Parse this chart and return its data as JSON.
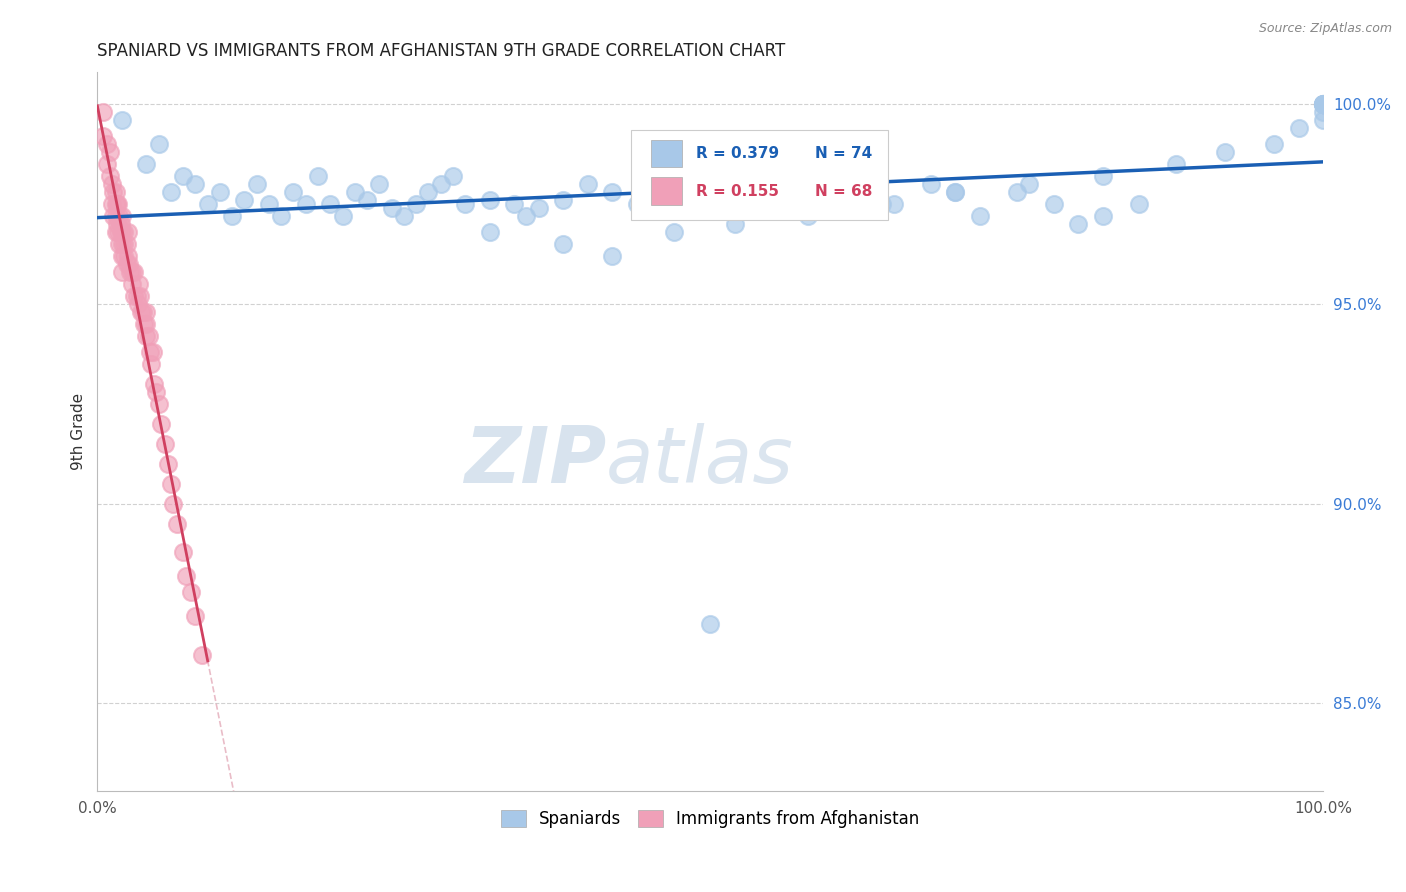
{
  "title": "SPANIARD VS IMMIGRANTS FROM AFGHANISTAN 9TH GRADE CORRELATION CHART",
  "source_text": "Source: ZipAtlas.com",
  "ylabel": "9th Grade",
  "xlim": [
    0.0,
    1.0
  ],
  "ylim": [
    0.828,
    1.008
  ],
  "y_ticks": [
    0.85,
    0.9,
    0.95,
    1.0
  ],
  "y_tick_labels": [
    "85.0%",
    "90.0%",
    "95.0%",
    "100.0%"
  ],
  "blue_color": "#a8c8e8",
  "pink_color": "#f0a0b8",
  "blue_line_color": "#1a5fb4",
  "pink_line_color": "#d04060",
  "pink_dash_color": "#e0a0b0",
  "legend_label_blue": "Spaniards",
  "legend_label_pink": "Immigrants from Afghanistan",
  "watermark_zip": "ZIP",
  "watermark_atlas": "atlas",
  "blue_scatter_x": [
    0.02,
    0.04,
    0.05,
    0.06,
    0.07,
    0.08,
    0.09,
    0.1,
    0.11,
    0.12,
    0.13,
    0.14,
    0.15,
    0.16,
    0.17,
    0.18,
    0.19,
    0.2,
    0.21,
    0.22,
    0.23,
    0.24,
    0.25,
    0.26,
    0.27,
    0.28,
    0.29,
    0.3,
    0.32,
    0.34,
    0.35,
    0.36,
    0.38,
    0.4,
    0.42,
    0.44,
    0.47,
    0.5,
    0.52,
    0.54,
    0.57,
    0.6,
    0.63,
    0.65,
    0.68,
    0.7,
    0.72,
    0.75,
    0.78,
    0.8,
    0.82,
    0.85,
    0.32,
    0.38,
    0.42,
    0.47,
    0.52,
    0.58,
    0.64,
    0.7,
    0.76,
    0.82,
    0.88,
    0.92,
    0.96,
    0.98,
    1.0,
    1.0,
    1.0,
    1.0,
    1.0,
    1.0,
    1.0,
    1.0
  ],
  "blue_scatter_y": [
    0.996,
    0.985,
    0.99,
    0.978,
    0.982,
    0.98,
    0.975,
    0.978,
    0.972,
    0.976,
    0.98,
    0.975,
    0.972,
    0.978,
    0.975,
    0.982,
    0.975,
    0.972,
    0.978,
    0.976,
    0.98,
    0.974,
    0.972,
    0.975,
    0.978,
    0.98,
    0.982,
    0.975,
    0.976,
    0.975,
    0.972,
    0.974,
    0.976,
    0.98,
    0.978,
    0.975,
    0.978,
    0.87,
    0.98,
    0.982,
    0.978,
    0.985,
    0.982,
    0.975,
    0.98,
    0.978,
    0.972,
    0.978,
    0.975,
    0.97,
    0.972,
    0.975,
    0.968,
    0.965,
    0.962,
    0.968,
    0.97,
    0.972,
    0.975,
    0.978,
    0.98,
    0.982,
    0.985,
    0.988,
    0.99,
    0.994,
    0.996,
    0.998,
    1.0,
    1.0,
    1.0,
    1.0,
    1.0,
    1.0
  ],
  "pink_scatter_x": [
    0.005,
    0.005,
    0.008,
    0.008,
    0.01,
    0.01,
    0.012,
    0.012,
    0.013,
    0.013,
    0.015,
    0.015,
    0.015,
    0.015,
    0.016,
    0.016,
    0.017,
    0.017,
    0.018,
    0.018,
    0.019,
    0.019,
    0.02,
    0.02,
    0.02,
    0.02,
    0.02,
    0.022,
    0.022,
    0.022,
    0.024,
    0.024,
    0.025,
    0.025,
    0.026,
    0.027,
    0.028,
    0.028,
    0.03,
    0.03,
    0.032,
    0.033,
    0.034,
    0.035,
    0.036,
    0.037,
    0.038,
    0.04,
    0.04,
    0.04,
    0.042,
    0.043,
    0.044,
    0.045,
    0.046,
    0.048,
    0.05,
    0.052,
    0.055,
    0.058,
    0.06,
    0.062,
    0.065,
    0.07,
    0.072,
    0.076,
    0.08,
    0.085
  ],
  "pink_scatter_y": [
    0.998,
    0.992,
    0.99,
    0.985,
    0.988,
    0.982,
    0.98,
    0.975,
    0.978,
    0.972,
    0.978,
    0.975,
    0.972,
    0.968,
    0.975,
    0.97,
    0.975,
    0.968,
    0.972,
    0.965,
    0.97,
    0.968,
    0.972,
    0.968,
    0.965,
    0.962,
    0.958,
    0.965,
    0.968,
    0.962,
    0.965,
    0.96,
    0.968,
    0.962,
    0.96,
    0.958,
    0.955,
    0.958,
    0.958,
    0.952,
    0.952,
    0.95,
    0.955,
    0.952,
    0.948,
    0.948,
    0.945,
    0.948,
    0.942,
    0.945,
    0.942,
    0.938,
    0.935,
    0.938,
    0.93,
    0.928,
    0.925,
    0.92,
    0.915,
    0.91,
    0.905,
    0.9,
    0.895,
    0.888,
    0.882,
    0.878,
    0.872,
    0.862
  ]
}
